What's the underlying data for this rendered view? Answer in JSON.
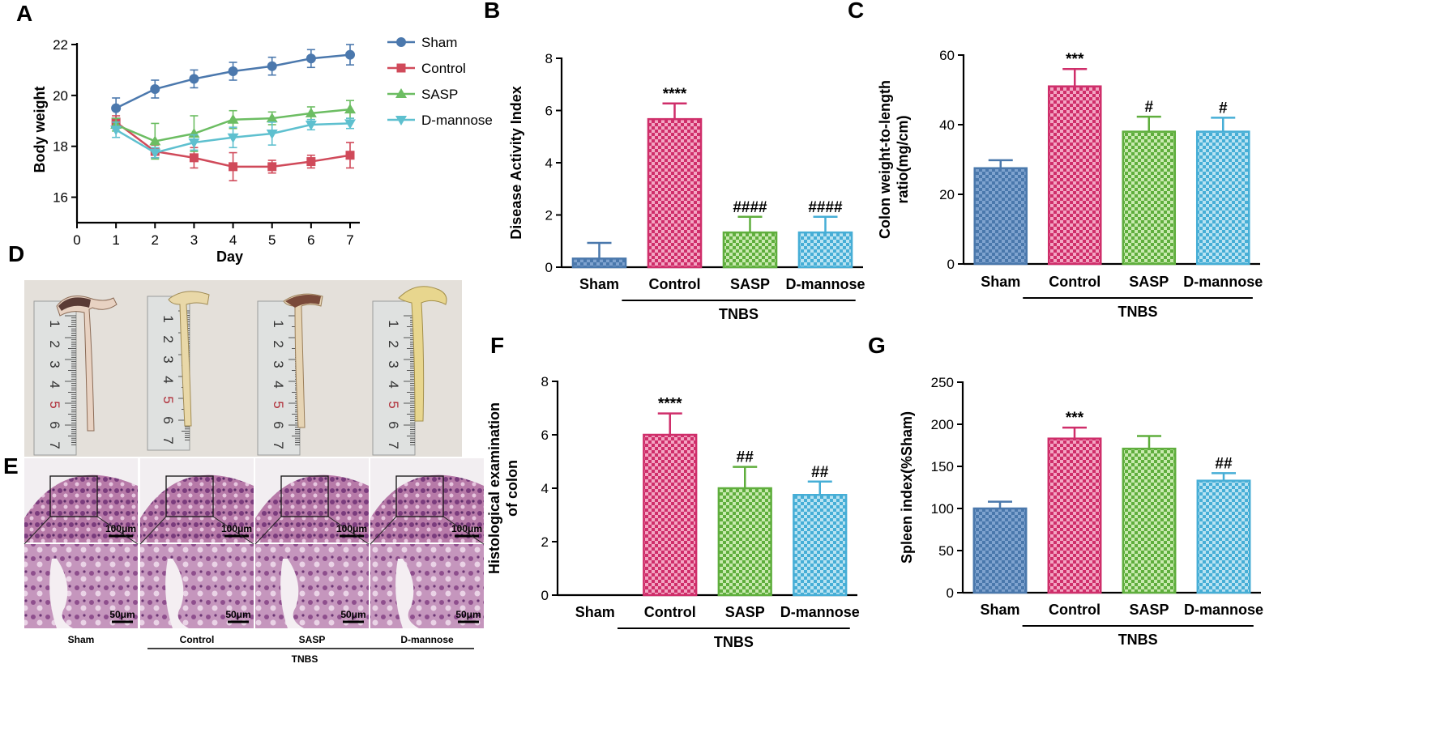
{
  "colors": {
    "sham": "#4a78ac",
    "control": "#cf2e6a",
    "sasp": "#5fae3d",
    "dmannose": "#46aed6",
    "line_sham": "#4b78ad",
    "line_control": "#d04a5a",
    "line_sasp": "#6cbd62",
    "line_dmannose": "#5ec0cf"
  },
  "panels": {
    "A": "A",
    "B": "B",
    "C": "C",
    "D": "D",
    "E": "E",
    "F": "F",
    "G": "G"
  },
  "group_label": "TNBS",
  "chart_data": [
    {
      "id": "A",
      "type": "line",
      "xlabel": "Day",
      "ylabel": "Body weight",
      "x": [
        1,
        2,
        3,
        4,
        5,
        6,
        7
      ],
      "xlim": [
        0,
        7
      ],
      "xticks": [
        "0",
        "1",
        "2",
        "3",
        "4",
        "5",
        "6",
        "7"
      ],
      "ylim": [
        15,
        22
      ],
      "yticks": [
        "16",
        "18",
        "20",
        "22"
      ],
      "series": [
        {
          "name": "Sham",
          "marker": "circle",
          "values": [
            19.5,
            20.25,
            20.65,
            20.95,
            21.15,
            21.45,
            21.6
          ],
          "err": [
            0.4,
            0.35,
            0.35,
            0.35,
            0.35,
            0.35,
            0.4
          ]
        },
        {
          "name": "Control",
          "marker": "square",
          "values": [
            18.95,
            17.8,
            17.55,
            17.2,
            17.2,
            17.4,
            17.65
          ],
          "err": [
            0.25,
            0.25,
            0.4,
            0.55,
            0.25,
            0.25,
            0.5
          ]
        },
        {
          "name": "SASP",
          "marker": "triangle-up",
          "values": [
            18.85,
            18.2,
            18.5,
            19.05,
            19.1,
            19.3,
            19.45
          ],
          "err": [
            0.25,
            0.7,
            0.7,
            0.35,
            0.25,
            0.25,
            0.35
          ]
        },
        {
          "name": "D-mannose",
          "marker": "triangle-down",
          "values": [
            18.65,
            17.75,
            18.15,
            18.35,
            18.5,
            18.85,
            18.9
          ],
          "err": [
            0.3,
            0.2,
            0.3,
            0.4,
            0.45,
            0.2,
            0.2
          ]
        }
      ]
    },
    {
      "id": "B",
      "type": "bar",
      "ylabel": "Disease Activity Index",
      "categories": [
        "Sham",
        "Control",
        "SASP",
        "D-mannose"
      ],
      "values": [
        0.33,
        5.67,
        1.33,
        1.33
      ],
      "err": [
        0.6,
        0.6,
        0.6,
        0.6
      ],
      "annotations": [
        "",
        "****",
        "####",
        "####"
      ],
      "ylim": [
        0,
        8
      ],
      "yticks": [
        "0",
        "2",
        "4",
        "6",
        "8"
      ]
    },
    {
      "id": "C",
      "type": "bar",
      "ylabel": "Colon weight-to-length ratio(mg/cm)",
      "ylabel_lines": [
        "Colon weight-to-length",
        "ratio(mg/cm)"
      ],
      "categories": [
        "Sham",
        "Control",
        "SASP",
        "D-mannose"
      ],
      "values": [
        27.5,
        51,
        38,
        38
      ],
      "err": [
        2.3,
        5,
        4.3,
        4
      ],
      "annotations": [
        "",
        "***",
        "#",
        "#"
      ],
      "ylim": [
        0,
        60
      ],
      "yticks": [
        "0",
        "20",
        "40",
        "60"
      ]
    },
    {
      "id": "F",
      "type": "bar",
      "ylabel": "Histological examination of colon",
      "ylabel_lines": [
        "Histological examination",
        "of colon"
      ],
      "categories": [
        "Sham",
        "Control",
        "SASP",
        "D-mannose"
      ],
      "values": [
        0,
        6,
        4,
        3.75
      ],
      "err": [
        0,
        0.8,
        0.8,
        0.5
      ],
      "annotations": [
        "",
        "****",
        "##",
        "##"
      ],
      "ylim": [
        0,
        8
      ],
      "yticks": [
        "0",
        "2",
        "4",
        "6",
        "8"
      ]
    },
    {
      "id": "G",
      "type": "bar",
      "ylabel": "Spleen index(%Sham)",
      "categories": [
        "Sham",
        "Control",
        "SASP",
        "D-mannose"
      ],
      "values": [
        100,
        183,
        171,
        133
      ],
      "err": [
        8,
        13,
        15,
        9
      ],
      "annotations": [
        "",
        "***",
        "",
        "##"
      ],
      "ylim": [
        0,
        250
      ],
      "yticks": [
        "0",
        "50",
        "100",
        "150",
        "200",
        "250"
      ]
    }
  ],
  "photo_D": {
    "ruler_numbers": [
      "1",
      "2",
      "3",
      "4",
      "5",
      "6",
      "7"
    ]
  },
  "histology_E": {
    "labels": [
      "Sham",
      "Control",
      "SASP",
      "D-mannose"
    ],
    "scale_top": "100μm",
    "scale_bottom": "50μm"
  }
}
